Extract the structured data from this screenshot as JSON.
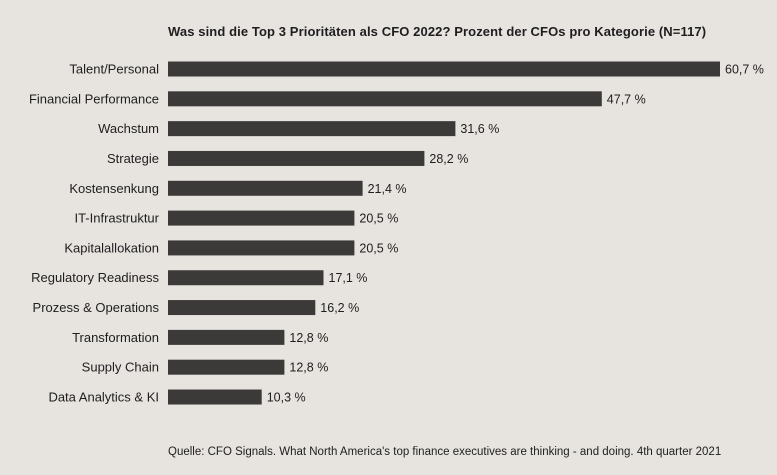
{
  "chart_data": {
    "type": "bar",
    "orientation": "horizontal",
    "title": "Was sind die Top 3 Prioritäten als CFO 2022? Prozent der CFOs pro Kategorie (N=117)",
    "categories": [
      "Talent/Personal",
      "Financial Performance",
      "Wachstum",
      "Strategie",
      "Kostensenkung",
      "IT-Infrastruktur",
      "Kapitalallokation",
      "Regulatory Readiness",
      "Prozess & Operations",
      "Transformation",
      "Supply Chain",
      "Data Analytics & KI"
    ],
    "values": [
      60.7,
      47.7,
      31.6,
      28.2,
      21.4,
      20.5,
      20.5,
      17.1,
      16.2,
      12.8,
      12.8,
      10.3
    ],
    "value_labels": [
      "60,7 %",
      "47,7 %",
      "31,6 %",
      "28,2 %",
      "21,4 %",
      "20,5 %",
      "20,5 %",
      "17,1 %",
      "16,2 %",
      "12,8 %",
      "12,8 %",
      "10,3 %"
    ],
    "unit": "%",
    "xlim": [
      0,
      60.7
    ],
    "grid": false,
    "bar_color": "#3b3a38",
    "background_color": "#e7e4e0",
    "source": "Quelle: CFO Signals. What North America's top finance executives are thinking - and doing. 4th quarter 2021"
  }
}
